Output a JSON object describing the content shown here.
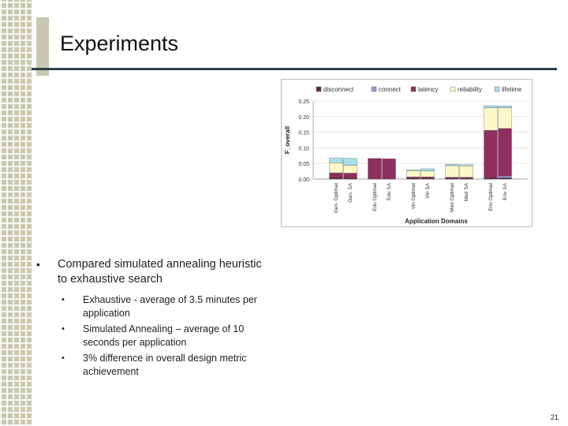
{
  "slide": {
    "title": "Experiments",
    "page_number": "21",
    "bullets": [
      {
        "text": "Compared simulated annealing heuristic to exhaustive search",
        "sub": [
          "Exhaustive - average of 3.5 minutes per application",
          "Simulated Annealing – average of 10 seconds per application",
          "3% difference in overall design metric achievement"
        ]
      }
    ]
  },
  "chart_data": {
    "type": "bar",
    "stacked": true,
    "xlabel": "Application Domains",
    "ylabel": "F_overall",
    "ylim": [
      0,
      0.25
    ],
    "yticks": [
      "0.00",
      "0.05",
      "0.10",
      "0.15",
      "0.20",
      "0.25"
    ],
    "grid": true,
    "legend_position": "top",
    "categories": [
      "Gen. Optimal",
      "Gen. SA",
      "Edu Optimal",
      "Edu SA",
      "Vin Optimal",
      "Vin SA",
      "Med Optimal",
      "Med SA",
      "Env Optimal",
      "Env SA"
    ],
    "groups": [
      [
        0,
        1
      ],
      [
        2,
        3
      ],
      [
        4,
        5
      ],
      [
        6,
        7
      ],
      [
        8,
        9
      ]
    ],
    "series": [
      {
        "name": "disconnect",
        "color": "#5c2a4a",
        "values": [
          0.004,
          0.004,
          0.0,
          0.0,
          0.003,
          0.003,
          0.003,
          0.003,
          0.004,
          0.004
        ]
      },
      {
        "name": "connect",
        "color": "#9a9ad8",
        "values": [
          0.0,
          0.0,
          0.0,
          0.0,
          0.0,
          0.0,
          0.0,
          0.0,
          0.0,
          0.006
        ]
      },
      {
        "name": "latency",
        "color": "#8f2f5f",
        "values": [
          0.016,
          0.015,
          0.066,
          0.065,
          0.004,
          0.004,
          0.003,
          0.003,
          0.152,
          0.152
        ]
      },
      {
        "name": "reliability",
        "color": "#fbf7c8",
        "values": [
          0.032,
          0.025,
          0.0,
          0.0,
          0.02,
          0.019,
          0.037,
          0.036,
          0.072,
          0.066
        ]
      },
      {
        "name": "lifetime",
        "color": "#a8dfe8",
        "values": [
          0.016,
          0.022,
          0.0,
          0.0,
          0.003,
          0.007,
          0.004,
          0.004,
          0.007,
          0.006
        ]
      }
    ]
  }
}
